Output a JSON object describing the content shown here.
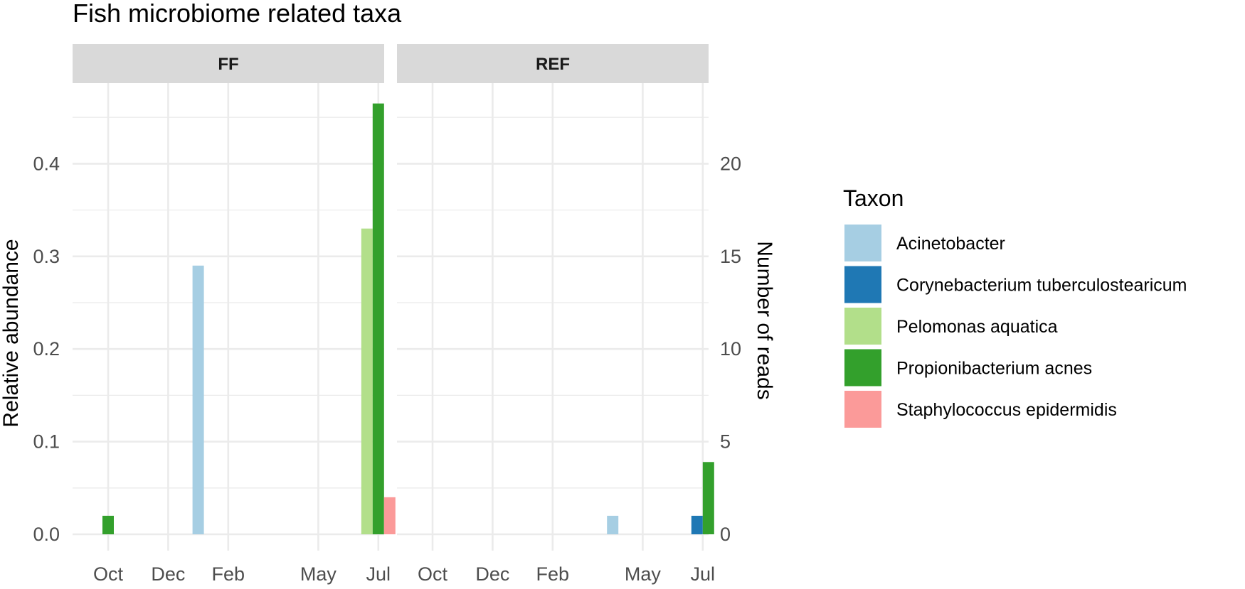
{
  "chart_data": {
    "type": "bar",
    "title": "Fish microbiome related taxa",
    "ylabel": "Relative abundance",
    "ylabel_secondary": "Number of reads",
    "y_ticks": [
      "0.0",
      "0.1",
      "0.2",
      "0.3",
      "0.4"
    ],
    "y2_ticks": [
      "0",
      "5",
      "10",
      "15",
      "20"
    ],
    "ylim": [
      0,
      0.49
    ],
    "y2_to_y_factor": 0.02,
    "x_ticks": [
      "Oct",
      "Dec",
      "Feb",
      "May",
      "Jul"
    ],
    "grid": true,
    "legend": {
      "title": "Taxon",
      "position": "right",
      "items": [
        {
          "name": "Acinetobacter",
          "color": "#a6cee3"
        },
        {
          "name": "Corynebacterium tuberculostearicum",
          "color": "#1f78b4"
        },
        {
          "name": "Pelomonas aquatica",
          "color": "#b2df8a"
        },
        {
          "name": "Propionibacterium acnes",
          "color": "#33a02c"
        },
        {
          "name": "Staphylococcus epidermidis",
          "color": "#fb9a99"
        }
      ]
    },
    "panels": [
      {
        "label": "FF",
        "bars": [
          {
            "x": "Oct",
            "taxon": "Propionibacterium acnes",
            "value": 0.02
          },
          {
            "x": "Jan",
            "taxon": "Acinetobacter",
            "value": 0.29
          },
          {
            "x": "Jul",
            "taxon": "Pelomonas aquatica",
            "value": 0.33
          },
          {
            "x": "Jul",
            "taxon": "Propionibacterium acnes",
            "value": 0.465
          },
          {
            "x": "Jul",
            "taxon": "Staphylococcus epidermidis",
            "value": 0.04
          }
        ]
      },
      {
        "label": "REF",
        "bars": [
          {
            "x": "Apr",
            "taxon": "Acinetobacter",
            "value": 0.02
          },
          {
            "x": "Jul",
            "taxon": "Corynebacterium tuberculostearicum",
            "value": 0.02
          },
          {
            "x": "Jul",
            "taxon": "Propionibacterium acnes",
            "value": 0.078
          }
        ]
      }
    ]
  }
}
